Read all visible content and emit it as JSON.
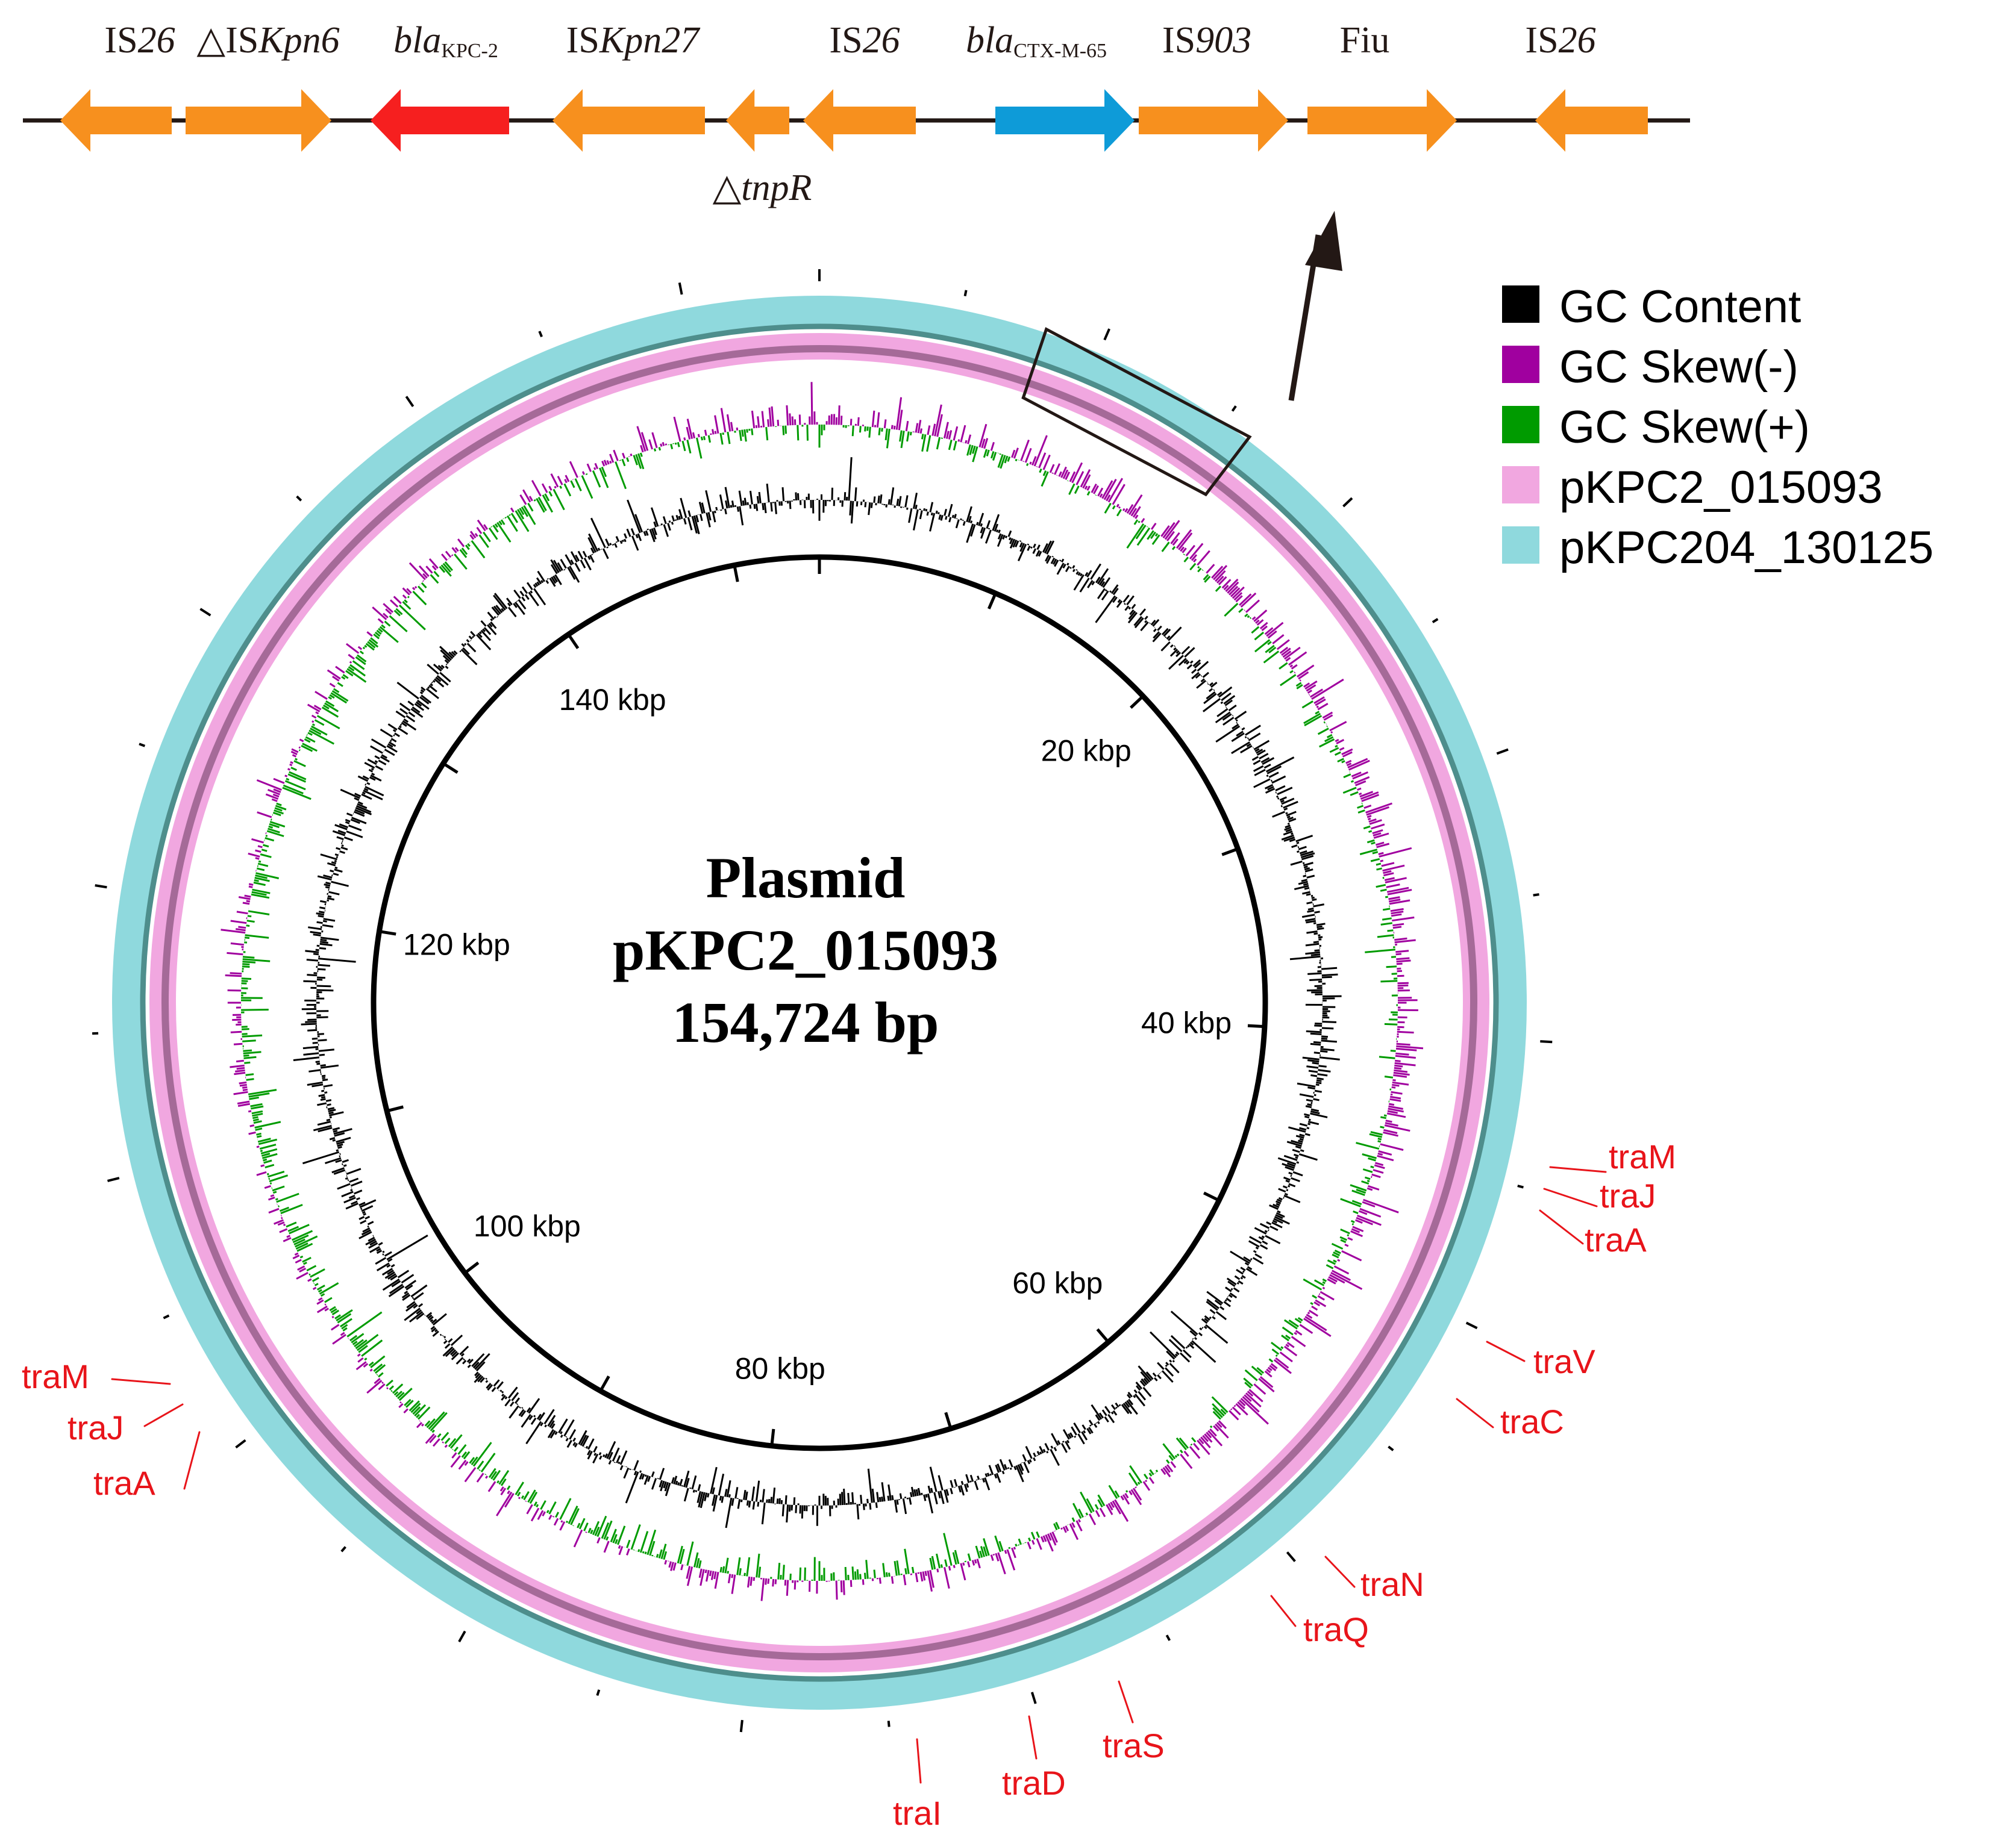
{
  "colors": {
    "is_element": "#F7901E",
    "kpc": "#F61F1F",
    "ctx": "#0E9BD8",
    "gc_content": "#000000",
    "gc_skew_neg": "#A0009F",
    "gc_skew_pos": "#009B00",
    "ring_pkpc2": "#F1A7E0",
    "ring_pkpc204": "#8FD9DD",
    "tra_label": "#E8141A"
  },
  "linear_map": {
    "genes": [
      {
        "label": "IS",
        "label_italic": "26",
        "color_key": "is_element",
        "strand": "-"
      },
      {
        "label": "△IS",
        "label_italic": "Kpn6",
        "color_key": "is_element",
        "strand": "+"
      },
      {
        "label_italic_prefix": "bla",
        "label_sub": "KPC-2",
        "color_key": "kpc",
        "strand": "-"
      },
      {
        "label": "IS",
        "label_italic": "Kpn27",
        "color_key": "is_element",
        "strand": "-"
      },
      {
        "label": "△",
        "label_italic": "tnpR",
        "color_key": "is_element",
        "strand": "-",
        "label_below": true
      },
      {
        "label": "IS",
        "label_italic": "26",
        "color_key": "is_element",
        "strand": "-"
      },
      {
        "label_italic_prefix": "bla",
        "label_sub": "CTX-M-65",
        "color_key": "ctx",
        "strand": "+"
      },
      {
        "label": "IS",
        "label_italic": "903",
        "color_key": "is_element",
        "strand": "+"
      },
      {
        "label": "Fiu",
        "color_key": "is_element",
        "strand": "+"
      },
      {
        "label": "IS",
        "label_italic": "26",
        "color_key": "is_element",
        "strand": "-"
      }
    ]
  },
  "plasmid": {
    "title_line1": "Plasmid",
    "title_line2": "pKPC2_015093",
    "title_line3": "154,724 bp",
    "length_bp": 154724,
    "scale_labels": [
      "20 kbp",
      "40 kbp",
      "60 kbp",
      "80 kbp",
      "100 kbp",
      "120 kbp",
      "140 kbp"
    ],
    "scale_kbp": [
      20,
      40,
      60,
      80,
      100,
      120,
      140
    ],
    "highlight_region_kbp": [
      8,
      16
    ]
  },
  "legend": {
    "items": [
      {
        "label": "GC Content",
        "color_key": "gc_content"
      },
      {
        "label": "GC Skew(-)",
        "color_key": "gc_skew_neg"
      },
      {
        "label": "GC Skew(+)",
        "color_key": "gc_skew_pos"
      },
      {
        "label": "pKPC2_015093",
        "color_key": "ring_pkpc2"
      },
      {
        "label": "pKPC204_130125",
        "color_key": "ring_pkpc204"
      }
    ]
  },
  "tra_genes": [
    {
      "label": "traM"
    },
    {
      "label": "traJ"
    },
    {
      "label": "traA"
    },
    {
      "label": "traV"
    },
    {
      "label": "traC"
    },
    {
      "label": "traN"
    },
    {
      "label": "traQ"
    },
    {
      "label": "traS"
    },
    {
      "label": "traD"
    },
    {
      "label": "traI"
    },
    {
      "label": "traM"
    },
    {
      "label": "traJ"
    },
    {
      "label": "traA"
    }
  ]
}
